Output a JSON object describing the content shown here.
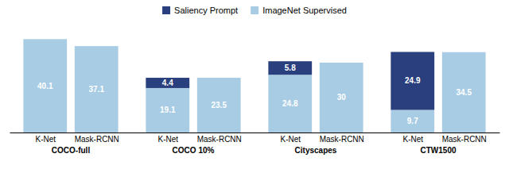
{
  "chart_data": {
    "type": "bar",
    "stacked": true,
    "data_labels": true,
    "tick_labels": "x",
    "legend": "top",
    "categories": [
      "K-Net",
      "Mask-RCNN",
      "K-Net",
      "Mask-RCNN",
      "K-Net",
      "Mask-RCNN",
      "K-Net",
      "Mask-RCNN"
    ],
    "groups": [
      "COCO-full",
      "COCO 10%",
      "Cityscapes",
      "CTW1500"
    ],
    "series": [
      {
        "name": "ImageNet Supervised",
        "color": "#a8cce4",
        "values": [
          40.1,
          37.1,
          19.1,
          23.5,
          24.8,
          30,
          9.7,
          34.5
        ]
      },
      {
        "name": "Saliency Prompt",
        "color": "#2a3f7e",
        "values": [
          0.0,
          0.0,
          4.4,
          0.0,
          5.8,
          0.0,
          24.9,
          0.0
        ],
        "value_labels": [
          null,
          null,
          "4.4",
          null,
          "5.8",
          null,
          "24.9",
          null
        ]
      }
    ],
    "ylim": [
      0,
      46
    ]
  }
}
